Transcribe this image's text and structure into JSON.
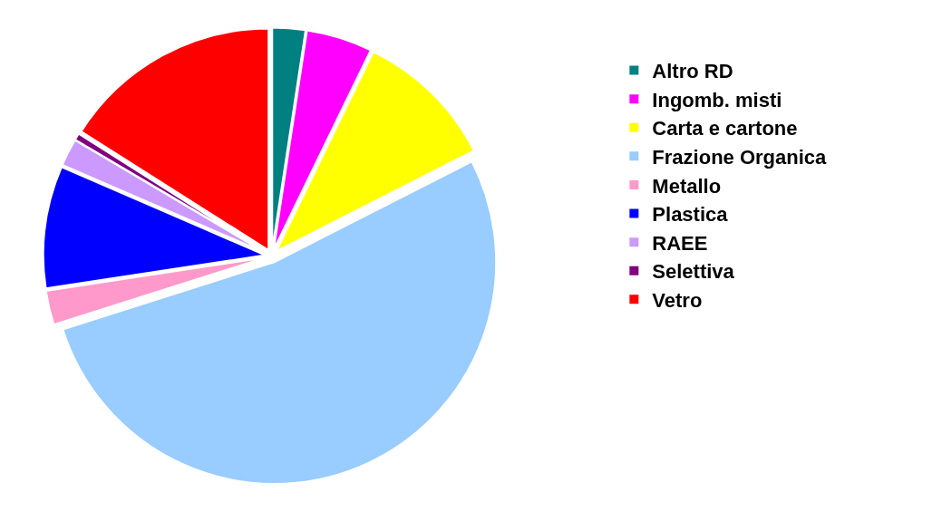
{
  "chart_data": {
    "type": "pie",
    "categories": [
      "Altro RD",
      "Ingomb. misti",
      "Carta e cartone",
      "Frazione Organica",
      "Metallo",
      "Plastica",
      "RAEE",
      "Selettiva",
      "Vetro"
    ],
    "values": [
      2.4,
      4.8,
      10.3,
      52.6,
      2.5,
      8.9,
      2.0,
      0.5,
      16.0
    ],
    "colors": [
      "#008080",
      "#ff00ff",
      "#ffff00",
      "#99ccff",
      "#ff99cc",
      "#0000ff",
      "#cc99ff",
      "#800080",
      "#ff0000"
    ],
    "legend": "right"
  }
}
